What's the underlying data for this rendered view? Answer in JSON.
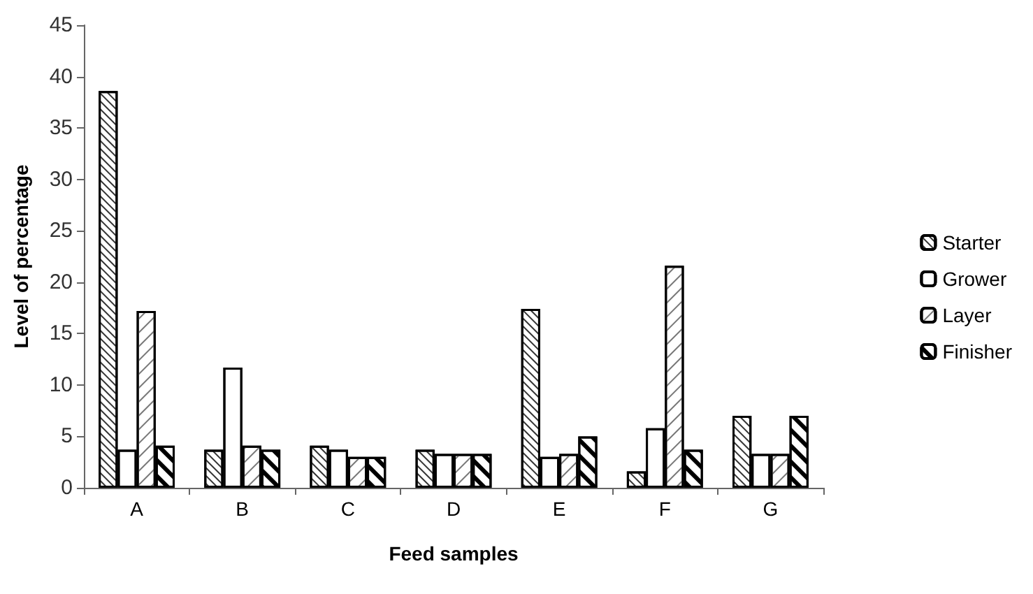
{
  "chart_data": {
    "type": "bar",
    "xlabel": "Feed samples",
    "ylabel": "Level of percentage",
    "categories": [
      "A",
      "B",
      "C",
      "D",
      "E",
      "F",
      "G"
    ],
    "series": [
      {
        "name": "Starter",
        "color": "#ffffff",
        "values": [
          38.6,
          3.7,
          4.1,
          3.7,
          17.4,
          1.6,
          7.0
        ]
      },
      {
        "name": "Grower",
        "color": "#ffffff",
        "values": [
          3.7,
          11.7,
          3.7,
          3.3,
          3.0,
          5.8,
          3.3
        ]
      },
      {
        "name": "Layer",
        "color": "#ffffff",
        "values": [
          17.2,
          4.1,
          3.0,
          3.3,
          3.3,
          21.6,
          3.3
        ]
      },
      {
        "name": "Finisher",
        "color": "#ffffff",
        "values": [
          4.1,
          3.7,
          3.0,
          3.3,
          5.0,
          3.7,
          7.0
        ]
      }
    ],
    "ylim": [
      0,
      45
    ],
    "yticks": [
      0,
      5,
      10,
      15,
      20,
      25,
      30,
      35,
      40,
      45
    ],
    "grid": false,
    "legend": "right"
  }
}
